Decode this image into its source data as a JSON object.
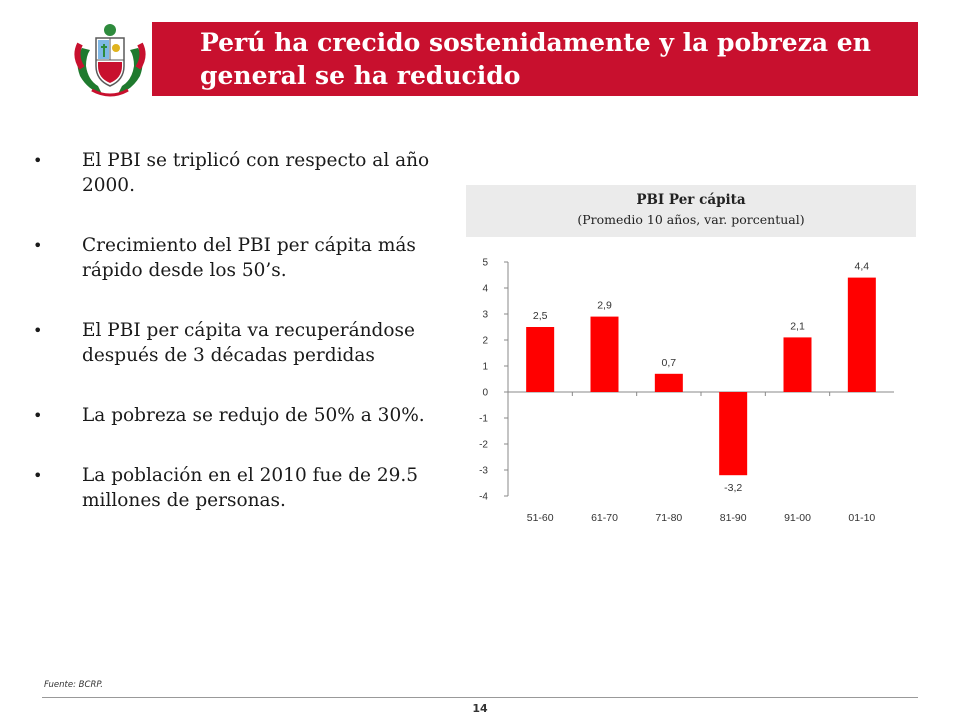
{
  "slide": {
    "title": "Perú ha crecido sostenidamente y la pobreza en general se ha reducido",
    "bullets": [
      "El PBI se triplicó con respecto al año 2000.",
      "Crecimiento del PBI per cápita más rápido desde los 50’s.",
      "El PBI per cápita va recuperándose después de 3 décadas perdidas",
      "La pobreza se redujo de 50% a 30%.",
      "La población en el 2010 fue de 29.5 millones de personas."
    ],
    "source": "Fuente: BCRP.",
    "page_number": "14"
  },
  "colors": {
    "accent": "#c8102e",
    "bar": "#ff0000"
  },
  "chart_data": {
    "type": "bar",
    "title": "PBI Per cápita",
    "subtitle": "(Promedio 10 años, var. porcentual)",
    "categories": [
      "51-60",
      "61-70",
      "71-80",
      "81-90",
      "91-00",
      "01-10"
    ],
    "values": [
      2.5,
      2.9,
      0.7,
      -3.2,
      2.1,
      4.4
    ],
    "value_labels": [
      "2,5",
      "2,9",
      "0,7",
      "-3,2",
      "2,1",
      "4,4"
    ],
    "yticks": [
      "5",
      "4",
      "3",
      "2",
      "1",
      "0",
      "-1",
      "-2",
      "-3",
      "-4"
    ],
    "ylim": [
      -4,
      5
    ],
    "grid": false,
    "legend": "none"
  }
}
